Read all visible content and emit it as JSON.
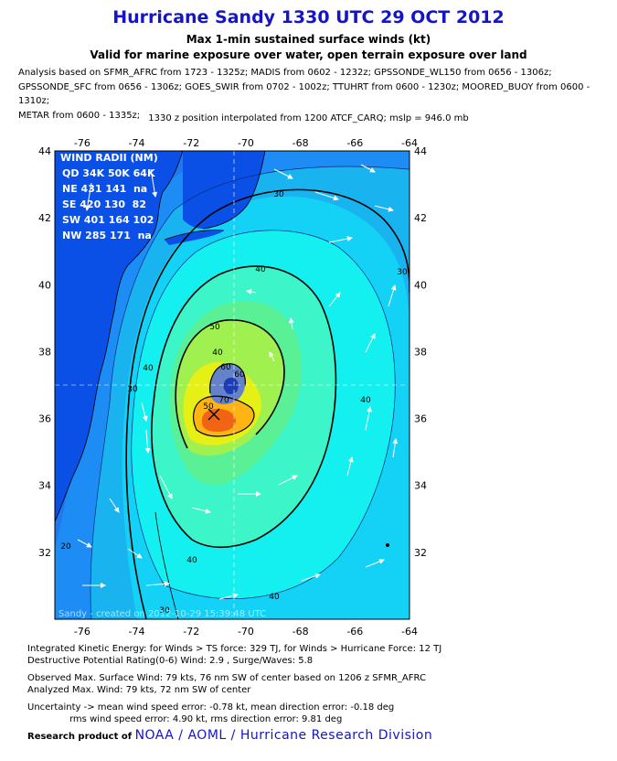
{
  "header": {
    "title": "Hurricane Sandy 1330 UTC 29 OCT 2012",
    "subtitle1": "Max 1-min sustained surface winds (kt)",
    "subtitle2": "Valid for marine exposure over water, open terrain exposure over land",
    "analysis_line1": "Analysis based on SFMR_AFRC from 1723 - 1325z; MADIS from 0602 - 1232z; GPSSONDE_WL150 from 0656 - 1306z;",
    "analysis_line2": "GPSSONDE_SFC from 0656 - 1306z; GOES_SWIR from 0702 - 1002z; TTUHRT from 0600 - 1230z; MOORED_BUOY from 0600 - 1310z;",
    "analysis_line3": "METAR from 0600 - 1335z;",
    "position_note": "1330 z position interpolated from 1200 ATCF_CARQ; mslp = 946.0 mb"
  },
  "map": {
    "lon_ticks": [
      "-76",
      "-74",
      "-72",
      "-70",
      "-68",
      "-66",
      "-64"
    ],
    "lat_ticks": [
      "44",
      "42",
      "40",
      "38",
      "36",
      "34",
      "32"
    ],
    "contour_labels": [
      "30",
      "40",
      "30",
      "40",
      "50",
      "60",
      "40",
      "50",
      "60",
      "70",
      "40",
      "30",
      "20",
      "40",
      "30",
      "40"
    ],
    "wind_radii": {
      "title": "WIND RADII (NM)",
      "header": "QD 34K 50K 64K",
      "rows": [
        "NE 431 141  na",
        "SE 420 130  82",
        "SW 401 164 102",
        "NW 285 171  na"
      ]
    },
    "watermark": "Sandy - created on 2012-10-29 15:39:48 UTC",
    "colors": {
      "land": "#0a50e6",
      "ocean_deep": "#1e78f0",
      "w20": "#1e8cf5",
      "w30": "#19b4f0",
      "w35": "#14d2f5",
      "w40": "#14f0f0",
      "w45": "#3cf5c8",
      "w50": "#5af096",
      "w55": "#a0f050",
      "w60": "#e6f014",
      "w65": "#ffb414",
      "w70": "#f06414",
      "eye": "#6482c8"
    }
  },
  "footer": {
    "ike": "Integrated Kinetic Energy: for Winds > TS force: 329 TJ, for Winds > Hurricane Force: 12 TJ",
    "dpr": "Destructive Potential Rating(0-6)  Wind: 2.9 , Surge/Waves: 5.8",
    "observed": "Observed Max. Surface Wind: 79 kts, 76 nm SW of center based on 1206 z SFMR_AFRC",
    "analyzed": "Analyzed Max. Wind: 79 kts, 72 nm  SW of center",
    "uncert1": "Uncertainty -> mean wind speed error:  -0.78 kt, mean direction error:  -0.18 deg",
    "uncert2": "rms wind speed error: 4.90 kt, rms direction error: 9.81 deg",
    "credit_prefix": "Research product of",
    "credit_org": "NOAA / AOML / Hurricane Research Division"
  }
}
